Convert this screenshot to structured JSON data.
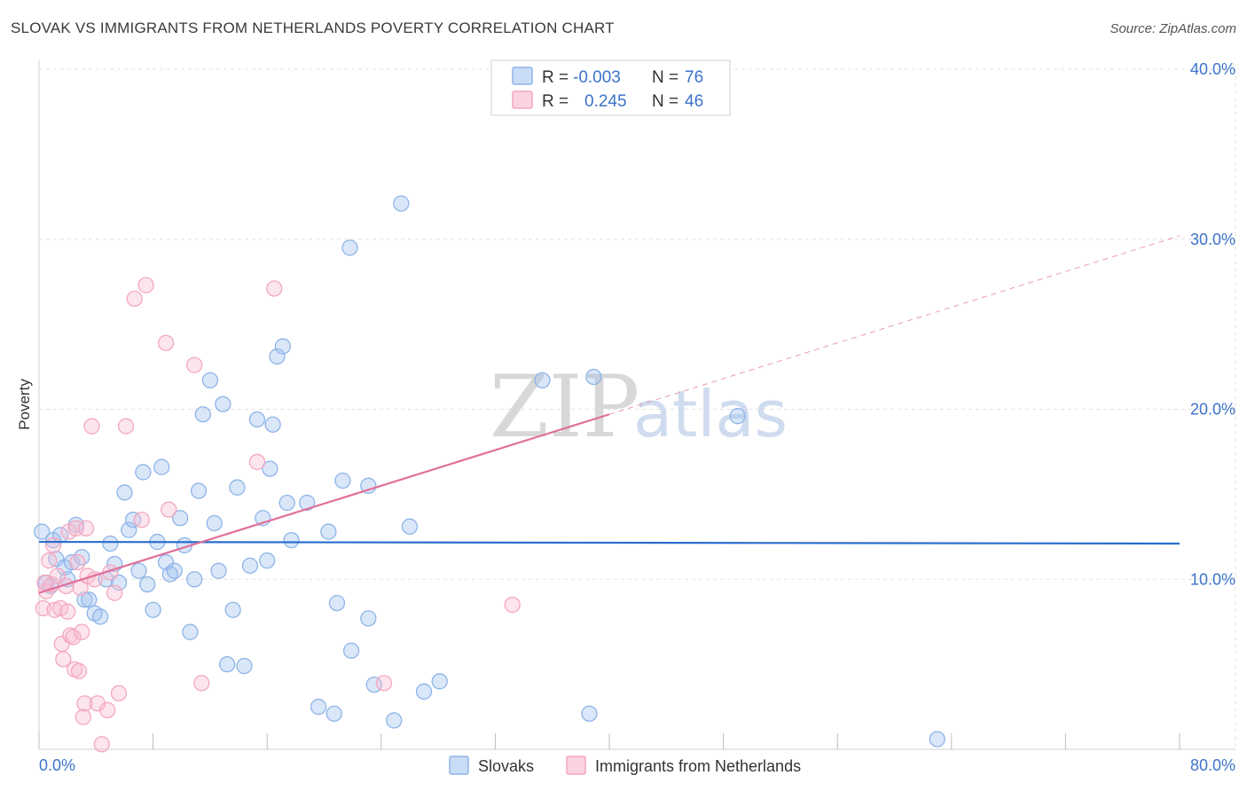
{
  "chart_data": {
    "type": "scatter",
    "title": "SLOVAK VS IMMIGRANTS FROM NETHERLANDS POVERTY CORRELATION CHART",
    "source": "Source: ZipAtlas.com",
    "ylabel": "Poverty",
    "xlim": [
      0,
      80
    ],
    "ylim": [
      0,
      40
    ],
    "x_tick_labels": [
      "0.0%",
      "80.0%"
    ],
    "y_ticks": [
      10,
      20,
      30,
      40
    ],
    "y_tick_labels": [
      "10.0%",
      "20.0%",
      "30.0%",
      "40.0%"
    ],
    "watermark": [
      "ZIP",
      "atlas"
    ],
    "legend": {
      "rows": [
        {
          "r_label": "R =",
          "r_value": "-0.003",
          "n_label": "N =",
          "n_value": "76"
        },
        {
          "r_label": "R =",
          "r_value": "0.245",
          "n_label": "N =",
          "n_value": "46"
        }
      ]
    },
    "series": [
      {
        "name": "Slovaks",
        "color": "#8fb4e8",
        "line_color": "#2a6dcc",
        "trend": {
          "x0": 0,
          "y0": 12.2,
          "x1": 80,
          "y1": 12.1
        },
        "points": [
          [
            0.2,
            12.8
          ],
          [
            0.5,
            9.8
          ],
          [
            0.8,
            9.6
          ],
          [
            1.0,
            12.3
          ],
          [
            1.2,
            11.2
          ],
          [
            1.5,
            12.6
          ],
          [
            1.8,
            10.7
          ],
          [
            2.0,
            10.0
          ],
          [
            2.3,
            11.0
          ],
          [
            2.6,
            13.2
          ],
          [
            3.0,
            11.3
          ],
          [
            3.2,
            8.8
          ],
          [
            3.5,
            8.8
          ],
          [
            3.9,
            8.0
          ],
          [
            4.3,
            7.8
          ],
          [
            4.7,
            10.0
          ],
          [
            5.0,
            12.1
          ],
          [
            5.3,
            10.9
          ],
          [
            5.6,
            9.8
          ],
          [
            6.0,
            15.1
          ],
          [
            6.3,
            12.9
          ],
          [
            6.6,
            13.5
          ],
          [
            7.0,
            10.5
          ],
          [
            7.3,
            16.3
          ],
          [
            7.6,
            9.7
          ],
          [
            8.0,
            8.2
          ],
          [
            8.3,
            12.2
          ],
          [
            8.6,
            16.6
          ],
          [
            8.9,
            11.0
          ],
          [
            9.2,
            10.3
          ],
          [
            9.5,
            10.5
          ],
          [
            9.9,
            13.6
          ],
          [
            10.2,
            12.0
          ],
          [
            10.6,
            6.9
          ],
          [
            10.9,
            10.0
          ],
          [
            11.2,
            15.2
          ],
          [
            11.5,
            19.7
          ],
          [
            12.0,
            21.7
          ],
          [
            12.3,
            13.3
          ],
          [
            12.6,
            10.5
          ],
          [
            12.9,
            20.3
          ],
          [
            13.2,
            5.0
          ],
          [
            13.6,
            8.2
          ],
          [
            13.9,
            15.4
          ],
          [
            14.4,
            4.9
          ],
          [
            14.8,
            10.8
          ],
          [
            15.3,
            19.4
          ],
          [
            15.7,
            13.6
          ],
          [
            16.0,
            11.1
          ],
          [
            16.2,
            16.5
          ],
          [
            16.4,
            19.1
          ],
          [
            16.7,
            23.1
          ],
          [
            17.1,
            23.7
          ],
          [
            17.4,
            14.5
          ],
          [
            17.7,
            12.3
          ],
          [
            18.8,
            14.5
          ],
          [
            19.6,
            2.5
          ],
          [
            20.3,
            12.8
          ],
          [
            20.7,
            2.1
          ],
          [
            20.9,
            8.6
          ],
          [
            21.3,
            15.8
          ],
          [
            21.8,
            29.5
          ],
          [
            21.9,
            5.8
          ],
          [
            23.1,
            15.5
          ],
          [
            23.1,
            7.7
          ],
          [
            23.5,
            3.8
          ],
          [
            24.9,
            1.7
          ],
          [
            25.4,
            32.1
          ],
          [
            26.0,
            13.1
          ],
          [
            27.0,
            3.4
          ],
          [
            28.1,
            4.0
          ],
          [
            35.3,
            21.7
          ],
          [
            38.6,
            2.1
          ],
          [
            38.9,
            21.9
          ],
          [
            49.0,
            19.6
          ],
          [
            63.0,
            0.6
          ]
        ]
      },
      {
        "name": "Immigrants from Netherlands",
        "color": "#f4a7c0",
        "line_color": "#e0709a",
        "trend": {
          "x0": 0,
          "y0": 9.2,
          "x1": 40,
          "y1": 19.7
        },
        "trend_dashed": {
          "x0": 40,
          "y0": 19.7,
          "x1": 80,
          "y1": 30.2
        },
        "points": [
          [
            0.3,
            8.3
          ],
          [
            0.5,
            9.3
          ],
          [
            0.7,
            11.1
          ],
          [
            0.9,
            9.7
          ],
          [
            1.1,
            8.2
          ],
          [
            1.3,
            10.2
          ],
          [
            1.5,
            8.3
          ],
          [
            1.6,
            6.2
          ],
          [
            1.7,
            5.3
          ],
          [
            1.9,
            9.6
          ],
          [
            2.1,
            12.8
          ],
          [
            2.2,
            6.7
          ],
          [
            2.4,
            6.6
          ],
          [
            2.5,
            4.7
          ],
          [
            2.6,
            13.0
          ],
          [
            2.7,
            11.0
          ],
          [
            2.8,
            4.6
          ],
          [
            2.9,
            9.5
          ],
          [
            3.0,
            6.9
          ],
          [
            3.1,
            1.9
          ],
          [
            3.2,
            2.7
          ],
          [
            3.3,
            13.0
          ],
          [
            3.4,
            10.2
          ],
          [
            3.7,
            19.0
          ],
          [
            3.9,
            10.0
          ],
          [
            4.1,
            2.7
          ],
          [
            4.4,
            0.3
          ],
          [
            4.8,
            2.3
          ],
          [
            5.3,
            9.2
          ],
          [
            5.6,
            3.3
          ],
          [
            6.1,
            19.0
          ],
          [
            6.7,
            26.5
          ],
          [
            7.2,
            13.5
          ],
          [
            7.5,
            27.3
          ],
          [
            8.9,
            23.9
          ],
          [
            9.1,
            14.1
          ],
          [
            10.9,
            22.6
          ],
          [
            11.4,
            3.9
          ],
          [
            15.3,
            16.9
          ],
          [
            16.5,
            27.1
          ],
          [
            24.2,
            3.9
          ],
          [
            33.2,
            8.5
          ],
          [
            0.4,
            9.8
          ],
          [
            1.0,
            12.0
          ],
          [
            2.0,
            8.1
          ],
          [
            5.0,
            10.4
          ]
        ]
      }
    ]
  }
}
